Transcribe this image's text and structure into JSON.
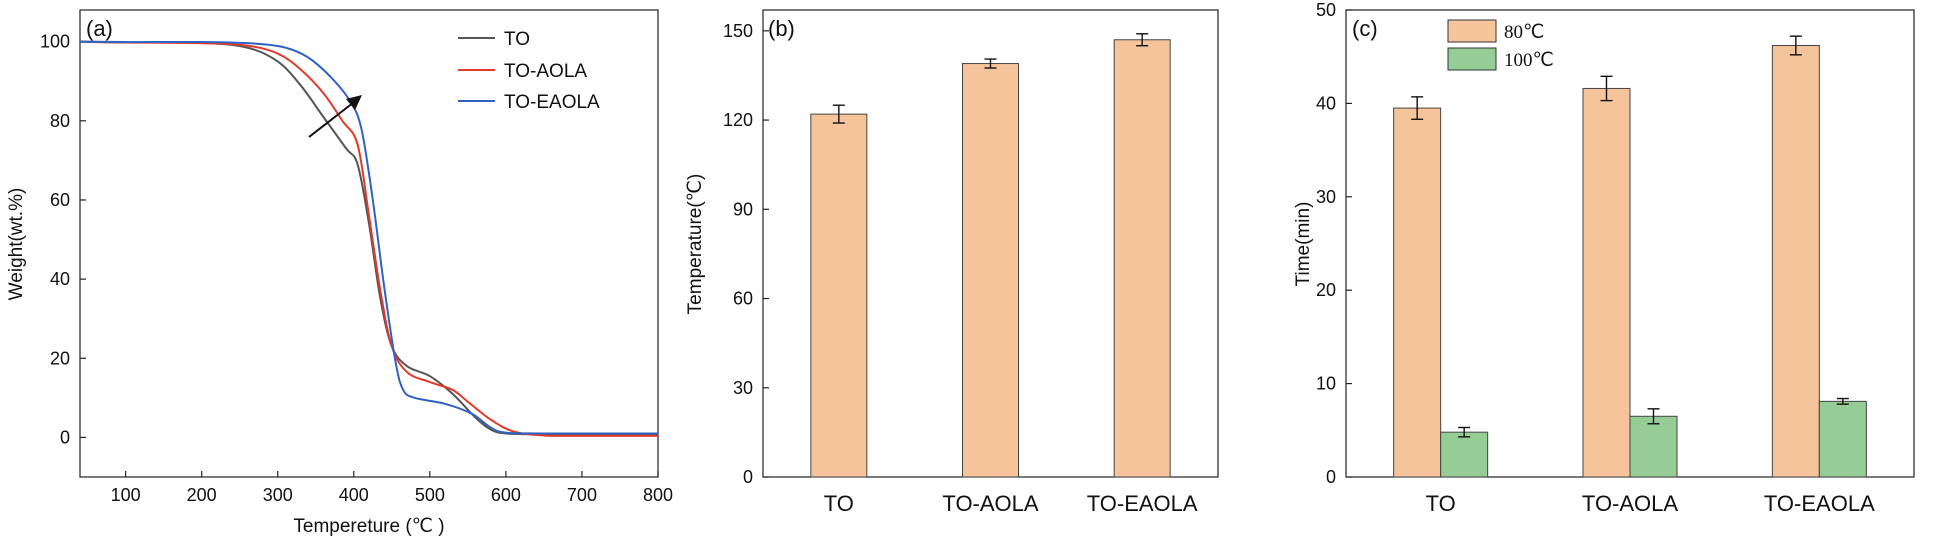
{
  "chart_data": [
    {
      "panel": "(a)",
      "type": "line",
      "title": "",
      "xlabel": "Tempereture (℃ )",
      "ylabel": "Weight(wt.%)",
      "xlim": [
        40,
        800
      ],
      "ylim": [
        -10,
        108
      ],
      "xticks": [
        "100",
        "200",
        "300",
        "400",
        "500",
        "600",
        "700",
        "800"
      ],
      "yticks": [
        "0",
        "20",
        "40",
        "60",
        "80",
        "100"
      ],
      "legend": "top-right",
      "annotation": "arrow pointing to increasing thermal stability",
      "series": [
        {
          "name": "TO",
          "color": "#555555",
          "points": [
            [
              40,
              100
            ],
            [
              100,
              99.8
            ],
            [
              200,
              99.7
            ],
            [
              260,
              98.5
            ],
            [
              300,
              95
            ],
            [
              330,
              89
            ],
            [
              360,
              81
            ],
            [
              390,
              73
            ],
            [
              405,
              69
            ],
            [
              420,
              54
            ],
            [
              435,
              35
            ],
            [
              450,
              23
            ],
            [
              470,
              18
            ],
            [
              500,
              15.5
            ],
            [
              530,
              11
            ],
            [
              560,
              5
            ],
            [
              580,
              2
            ],
            [
              600,
              1
            ],
            [
              650,
              0.8
            ],
            [
              700,
              0.8
            ],
            [
              800,
              0.8
            ]
          ]
        },
        {
          "name": "TO-AOLA",
          "color": "#e23a2a",
          "points": [
            [
              40,
              100
            ],
            [
              100,
              99.8
            ],
            [
              200,
              99.6
            ],
            [
              260,
              99
            ],
            [
              300,
              97
            ],
            [
              330,
              93
            ],
            [
              360,
              87
            ],
            [
              385,
              80
            ],
            [
              405,
              74
            ],
            [
              420,
              56
            ],
            [
              435,
              37
            ],
            [
              450,
              23
            ],
            [
              470,
              16.5
            ],
            [
              500,
              14
            ],
            [
              530,
              12
            ],
            [
              550,
              9
            ],
            [
              580,
              4.5
            ],
            [
              610,
              1.5
            ],
            [
              650,
              0.5
            ],
            [
              700,
              0.4
            ],
            [
              800,
              0.4
            ]
          ]
        },
        {
          "name": "TO-EAOLA",
          "color": "#2f62c4",
          "points": [
            [
              40,
              100
            ],
            [
              100,
              99.9
            ],
            [
              200,
              99.9
            ],
            [
              270,
              99.5
            ],
            [
              310,
              98.5
            ],
            [
              340,
              96
            ],
            [
              370,
              91
            ],
            [
              395,
              85
            ],
            [
              410,
              78
            ],
            [
              425,
              60
            ],
            [
              440,
              38
            ],
            [
              455,
              19
            ],
            [
              465,
              12
            ],
            [
              480,
              10
            ],
            [
              520,
              8.5
            ],
            [
              555,
              6
            ],
            [
              580,
              2.5
            ],
            [
              600,
              1.2
            ],
            [
              650,
              1
            ],
            [
              800,
              1
            ]
          ]
        }
      ]
    },
    {
      "panel": "(b)",
      "type": "bar",
      "title": "",
      "xlabel": "",
      "ylabel": "Temperature(℃)",
      "ylim": [
        0,
        157
      ],
      "yticks": [
        "0",
        "30",
        "60",
        "90",
        "120",
        "150"
      ],
      "categories": [
        "TO",
        "TO-AOLA",
        "TO-EAOLA"
      ],
      "series": [
        {
          "name": "",
          "color": "#f6c49b",
          "values": [
            122,
            139,
            147
          ],
          "errors": [
            3,
            1.5,
            2
          ]
        }
      ]
    },
    {
      "panel": "(c)",
      "type": "bar",
      "title": "",
      "xlabel": "",
      "ylabel": "Time(min)",
      "ylim": [
        0,
        50
      ],
      "yticks": [
        "0",
        "10",
        "20",
        "30",
        "40",
        "50"
      ],
      "categories": [
        "TO",
        "TO-AOLA",
        "TO-EAOLA"
      ],
      "legend": "top-left",
      "series": [
        {
          "name": "80℃",
          "color": "#f6c49b",
          "values": [
            39.5,
            41.6,
            46.2
          ],
          "errors": [
            1.2,
            1.3,
            1.0
          ]
        },
        {
          "name": "100℃",
          "color": "#96cc96",
          "values": [
            4.8,
            6.5,
            8.1
          ],
          "errors": [
            0.5,
            0.8,
            0.3
          ]
        }
      ]
    }
  ]
}
